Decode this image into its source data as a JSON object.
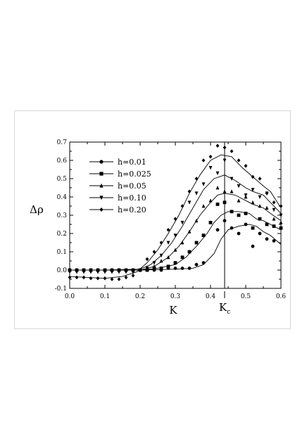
{
  "chart_data": {
    "type": "line",
    "xlabel": "K",
    "ylabel": "Δρ",
    "kc_label": {
      "main": "K",
      "sub": "c"
    },
    "kc_value": 0.44,
    "xlim": [
      0.0,
      0.6
    ],
    "ylim": [
      -0.1,
      0.7
    ],
    "x_ticks": [
      "0.0",
      "0.1",
      "0.2",
      "0.3",
      "0.4",
      "0.5",
      "0.6"
    ],
    "y_ticks": [
      "-0.1",
      "0.0",
      "0.1",
      "0.2",
      "0.3",
      "0.4",
      "0.5",
      "0.6",
      "0.7"
    ],
    "x_tick_values": [
      0.0,
      0.1,
      0.2,
      0.3,
      0.4,
      0.5,
      0.6
    ],
    "y_tick_values": [
      -0.1,
      0.0,
      0.1,
      0.2,
      0.3,
      0.4,
      0.5,
      0.6,
      0.7
    ],
    "legend_position": "top-left",
    "grid": false,
    "series": [
      {
        "name": "h=0.01",
        "marker": "circle",
        "curve": [
          [
            0.0,
            0.0
          ],
          [
            0.1,
            0.0
          ],
          [
            0.2,
            0.0
          ],
          [
            0.3,
            0.005
          ],
          [
            0.35,
            0.01
          ],
          [
            0.38,
            0.03
          ],
          [
            0.41,
            0.09
          ],
          [
            0.43,
            0.17
          ],
          [
            0.45,
            0.22
          ],
          [
            0.48,
            0.24
          ],
          [
            0.51,
            0.25
          ],
          [
            0.53,
            0.24
          ],
          [
            0.55,
            0.21
          ],
          [
            0.57,
            0.19
          ],
          [
            0.6,
            0.14
          ]
        ],
        "points": [
          [
            0.0,
            0.0
          ],
          [
            0.02,
            0.0
          ],
          [
            0.04,
            0.0
          ],
          [
            0.06,
            0.0
          ],
          [
            0.08,
            0.0
          ],
          [
            0.1,
            0.0
          ],
          [
            0.12,
            0.0
          ],
          [
            0.14,
            0.0
          ],
          [
            0.16,
            0.0
          ],
          [
            0.18,
            0.0
          ],
          [
            0.2,
            0.0
          ],
          [
            0.22,
            0.0
          ],
          [
            0.24,
            0.0
          ],
          [
            0.26,
            0.0
          ],
          [
            0.28,
            0.01
          ],
          [
            0.3,
            0.01
          ],
          [
            0.32,
            0.01
          ],
          [
            0.34,
            0.01
          ],
          [
            0.36,
            0.03
          ],
          [
            0.38,
            0.04
          ],
          [
            0.42,
            0.22
          ],
          [
            0.44,
            0.27
          ],
          [
            0.46,
            0.23
          ],
          [
            0.48,
            0.2
          ],
          [
            0.5,
            0.25
          ],
          [
            0.52,
            0.13
          ],
          [
            0.54,
            0.2
          ],
          [
            0.56,
            0.17
          ],
          [
            0.58,
            0.16
          ]
        ]
      },
      {
        "name": "h=0.025",
        "marker": "square",
        "curve": [
          [
            0.0,
            0.0
          ],
          [
            0.1,
            0.0
          ],
          [
            0.2,
            0.0
          ],
          [
            0.25,
            0.01
          ],
          [
            0.3,
            0.03
          ],
          [
            0.33,
            0.07
          ],
          [
            0.36,
            0.13
          ],
          [
            0.39,
            0.2
          ],
          [
            0.41,
            0.26
          ],
          [
            0.43,
            0.3
          ],
          [
            0.45,
            0.32
          ],
          [
            0.48,
            0.32
          ],
          [
            0.51,
            0.31
          ],
          [
            0.53,
            0.28
          ],
          [
            0.55,
            0.27
          ],
          [
            0.57,
            0.25
          ],
          [
            0.6,
            0.22
          ]
        ],
        "points": [
          [
            0.0,
            0.0
          ],
          [
            0.02,
            0.0
          ],
          [
            0.04,
            0.0
          ],
          [
            0.06,
            0.0
          ],
          [
            0.08,
            0.0
          ],
          [
            0.1,
            0.0
          ],
          [
            0.12,
            0.0
          ],
          [
            0.14,
            0.0
          ],
          [
            0.16,
            0.0
          ],
          [
            0.18,
            0.0
          ],
          [
            0.2,
            0.0
          ],
          [
            0.22,
            0.0
          ],
          [
            0.24,
            0.01
          ],
          [
            0.26,
            0.01
          ],
          [
            0.28,
            0.02
          ],
          [
            0.3,
            0.04
          ],
          [
            0.32,
            0.07
          ],
          [
            0.34,
            0.1
          ],
          [
            0.36,
            0.15
          ],
          [
            0.38,
            0.19
          ],
          [
            0.4,
            0.26
          ],
          [
            0.42,
            0.36
          ],
          [
            0.44,
            0.37
          ],
          [
            0.46,
            0.32
          ],
          [
            0.48,
            0.3
          ],
          [
            0.5,
            0.31
          ],
          [
            0.52,
            0.23
          ],
          [
            0.54,
            0.28
          ],
          [
            0.56,
            0.25
          ],
          [
            0.58,
            0.24
          ],
          [
            0.6,
            0.23
          ]
        ]
      },
      {
        "name": "h=0.05",
        "marker": "triangle-up",
        "curve": [
          [
            0.0,
            0.0
          ],
          [
            0.1,
            0.0
          ],
          [
            0.2,
            0.0
          ],
          [
            0.24,
            0.02
          ],
          [
            0.28,
            0.07
          ],
          [
            0.31,
            0.13
          ],
          [
            0.34,
            0.21
          ],
          [
            0.37,
            0.3
          ],
          [
            0.4,
            0.37
          ],
          [
            0.42,
            0.41
          ],
          [
            0.44,
            0.42
          ],
          [
            0.47,
            0.41
          ],
          [
            0.5,
            0.38
          ],
          [
            0.52,
            0.36
          ],
          [
            0.55,
            0.34
          ],
          [
            0.57,
            0.31
          ],
          [
            0.6,
            0.27
          ]
        ],
        "points": [
          [
            0.0,
            0.0
          ],
          [
            0.02,
            0.0
          ],
          [
            0.04,
            0.0
          ],
          [
            0.06,
            0.0
          ],
          [
            0.08,
            0.0
          ],
          [
            0.1,
            0.0
          ],
          [
            0.12,
            0.0
          ],
          [
            0.14,
            0.0
          ],
          [
            0.16,
            0.0
          ],
          [
            0.18,
            0.0
          ],
          [
            0.2,
            0.0
          ],
          [
            0.22,
            0.01
          ],
          [
            0.24,
            0.02
          ],
          [
            0.26,
            0.05
          ],
          [
            0.28,
            0.07
          ],
          [
            0.3,
            0.11
          ],
          [
            0.32,
            0.15
          ],
          [
            0.34,
            0.21
          ],
          [
            0.36,
            0.27
          ],
          [
            0.38,
            0.35
          ],
          [
            0.4,
            0.38
          ],
          [
            0.42,
            0.45
          ],
          [
            0.44,
            0.43
          ],
          [
            0.46,
            0.43
          ],
          [
            0.48,
            0.38
          ],
          [
            0.5,
            0.4
          ],
          [
            0.52,
            0.37
          ],
          [
            0.54,
            0.35
          ],
          [
            0.56,
            0.34
          ],
          [
            0.58,
            0.28
          ],
          [
            0.6,
            0.26
          ]
        ]
      },
      {
        "name": "h=0.10",
        "marker": "triangle-down",
        "curve": [
          [
            0.0,
            0.0
          ],
          [
            0.1,
            0.0
          ],
          [
            0.2,
            0.005
          ],
          [
            0.23,
            0.03
          ],
          [
            0.26,
            0.08
          ],
          [
            0.29,
            0.15
          ],
          [
            0.32,
            0.24
          ],
          [
            0.35,
            0.34
          ],
          [
            0.38,
            0.44
          ],
          [
            0.41,
            0.5
          ],
          [
            0.44,
            0.52
          ],
          [
            0.47,
            0.49
          ],
          [
            0.5,
            0.45
          ],
          [
            0.52,
            0.43
          ],
          [
            0.55,
            0.41
          ],
          [
            0.57,
            0.37
          ],
          [
            0.6,
            0.31
          ]
        ],
        "points": [
          [
            0.0,
            -0.01
          ],
          [
            0.02,
            -0.01
          ],
          [
            0.04,
            -0.01
          ],
          [
            0.06,
            -0.01
          ],
          [
            0.08,
            -0.01
          ],
          [
            0.1,
            -0.01
          ],
          [
            0.12,
            -0.01
          ],
          [
            0.14,
            -0.01
          ],
          [
            0.16,
            -0.01
          ],
          [
            0.18,
            -0.01
          ],
          [
            0.2,
            0.0
          ],
          [
            0.22,
            0.01
          ],
          [
            0.24,
            0.04
          ],
          [
            0.26,
            0.08
          ],
          [
            0.28,
            0.15
          ],
          [
            0.3,
            0.19
          ],
          [
            0.32,
            0.26
          ],
          [
            0.34,
            0.37
          ],
          [
            0.36,
            0.42
          ],
          [
            0.38,
            0.47
          ],
          [
            0.4,
            0.56
          ],
          [
            0.42,
            0.53
          ],
          [
            0.44,
            0.6
          ],
          [
            0.46,
            0.5
          ],
          [
            0.48,
            0.46
          ],
          [
            0.5,
            0.41
          ],
          [
            0.52,
            0.44
          ],
          [
            0.54,
            0.4
          ],
          [
            0.56,
            0.42
          ],
          [
            0.58,
            0.33
          ],
          [
            0.6,
            0.3
          ]
        ]
      },
      {
        "name": "h=0.20",
        "marker": "diamond",
        "curve": [
          [
            0.0,
            -0.035
          ],
          [
            0.05,
            -0.04
          ],
          [
            0.1,
            -0.045
          ],
          [
            0.15,
            -0.035
          ],
          [
            0.19,
            -0.01
          ],
          [
            0.22,
            0.04
          ],
          [
            0.25,
            0.11
          ],
          [
            0.28,
            0.2
          ],
          [
            0.31,
            0.3
          ],
          [
            0.34,
            0.42
          ],
          [
            0.37,
            0.52
          ],
          [
            0.4,
            0.6
          ],
          [
            0.43,
            0.63
          ],
          [
            0.46,
            0.62
          ],
          [
            0.49,
            0.56
          ],
          [
            0.52,
            0.51
          ],
          [
            0.55,
            0.46
          ],
          [
            0.57,
            0.43
          ],
          [
            0.6,
            0.34
          ]
        ],
        "points": [
          [
            0.0,
            -0.04
          ],
          [
            0.02,
            -0.04
          ],
          [
            0.04,
            -0.04
          ],
          [
            0.06,
            -0.045
          ],
          [
            0.08,
            -0.045
          ],
          [
            0.1,
            -0.045
          ],
          [
            0.12,
            -0.05
          ],
          [
            0.14,
            -0.05
          ],
          [
            0.16,
            -0.04
          ],
          [
            0.18,
            -0.03
          ],
          [
            0.2,
            0.0
          ],
          [
            0.22,
            0.06
          ],
          [
            0.24,
            0.1
          ],
          [
            0.26,
            0.15
          ],
          [
            0.28,
            0.22
          ],
          [
            0.3,
            0.28
          ],
          [
            0.32,
            0.35
          ],
          [
            0.34,
            0.43
          ],
          [
            0.36,
            0.5
          ],
          [
            0.38,
            0.6
          ],
          [
            0.4,
            0.62
          ],
          [
            0.42,
            0.68
          ],
          [
            0.44,
            0.67
          ],
          [
            0.46,
            0.65
          ],
          [
            0.48,
            0.6
          ],
          [
            0.5,
            0.57
          ],
          [
            0.52,
            0.51
          ],
          [
            0.54,
            0.5
          ],
          [
            0.56,
            0.42
          ],
          [
            0.58,
            0.37
          ],
          [
            0.6,
            0.35
          ]
        ]
      }
    ]
  }
}
